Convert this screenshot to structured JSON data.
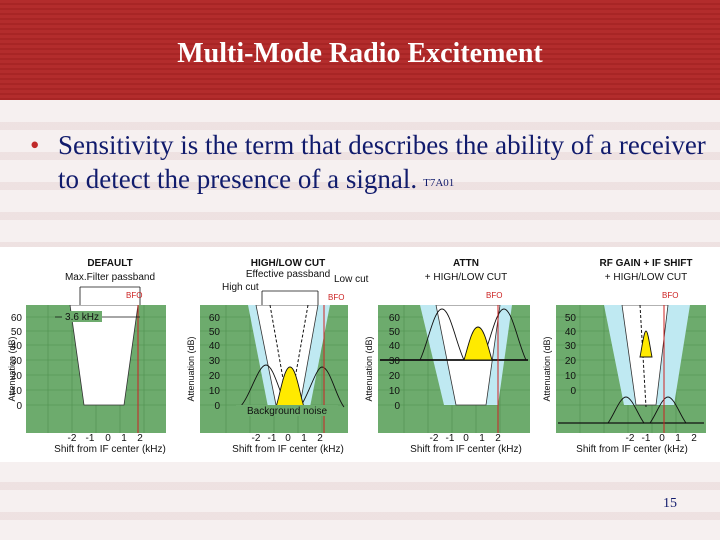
{
  "slide": {
    "title": "Multi-Mode Radio Excitement",
    "bullet": "Sensitivity is the term that describes the ability of a receiver to detect the presence of a signal.",
    "bullet_ref": "T7A01",
    "page_number": "15"
  },
  "colors": {
    "title_bar": "#b32c2c",
    "text": "#111b6c",
    "plot_bg": "#6dab6d",
    "passband": "#bfe9f2",
    "signal": "#ffea00",
    "bfo": "#cc2222"
  },
  "figure": {
    "panels": [
      {
        "title": "DEFAULT",
        "subtitle": "Max.Filter passband",
        "bfo": "BFO",
        "ylabel": "Attenuation (dB)",
        "yticks": [
          "60",
          "50",
          "40",
          "30",
          "20",
          "10",
          "0"
        ],
        "xticks": [
          "-2",
          "-1",
          "0",
          "1",
          "2"
        ],
        "xlabel": "Shift from IF center (kHz)",
        "annotation": "3.6 kHz"
      },
      {
        "title": "HIGH/LOW CUT",
        "subtitle": "Effective passband",
        "left_label": "High cut",
        "right_label": "Low cut",
        "bfo": "BFO",
        "ylabel": "Attenuation (dB)",
        "yticks": [
          "60",
          "50",
          "40",
          "30",
          "20",
          "10",
          "0"
        ],
        "xticks": [
          "-2",
          "-1",
          "0",
          "1",
          "2"
        ],
        "xlabel": "Shift from IF center (kHz)",
        "annotation": "Background noise"
      },
      {
        "title": "ATTN",
        "subtitle": "+ HIGH/LOW CUT",
        "bfo": "BFO",
        "ylabel": "Attenuation (dB)",
        "yticks": [
          "60",
          "50",
          "40",
          "30",
          "20",
          "10",
          "0"
        ],
        "xticks": [
          "-2",
          "-1",
          "0",
          "1",
          "2"
        ],
        "xlabel": "Shift from IF center (kHz)"
      },
      {
        "title": "RF GAIN + IF SHIFT",
        "subtitle": "+ HIGH/LOW CUT",
        "bfo": "BFO",
        "ylabel": "Attenuation (dB)",
        "yticks": [
          "50",
          "40",
          "30",
          "20",
          "10",
          "0"
        ],
        "xticks": [
          "-2",
          "-1",
          "0",
          "1",
          "2"
        ],
        "xlabel": "Shift from IF center (kHz)"
      }
    ]
  }
}
